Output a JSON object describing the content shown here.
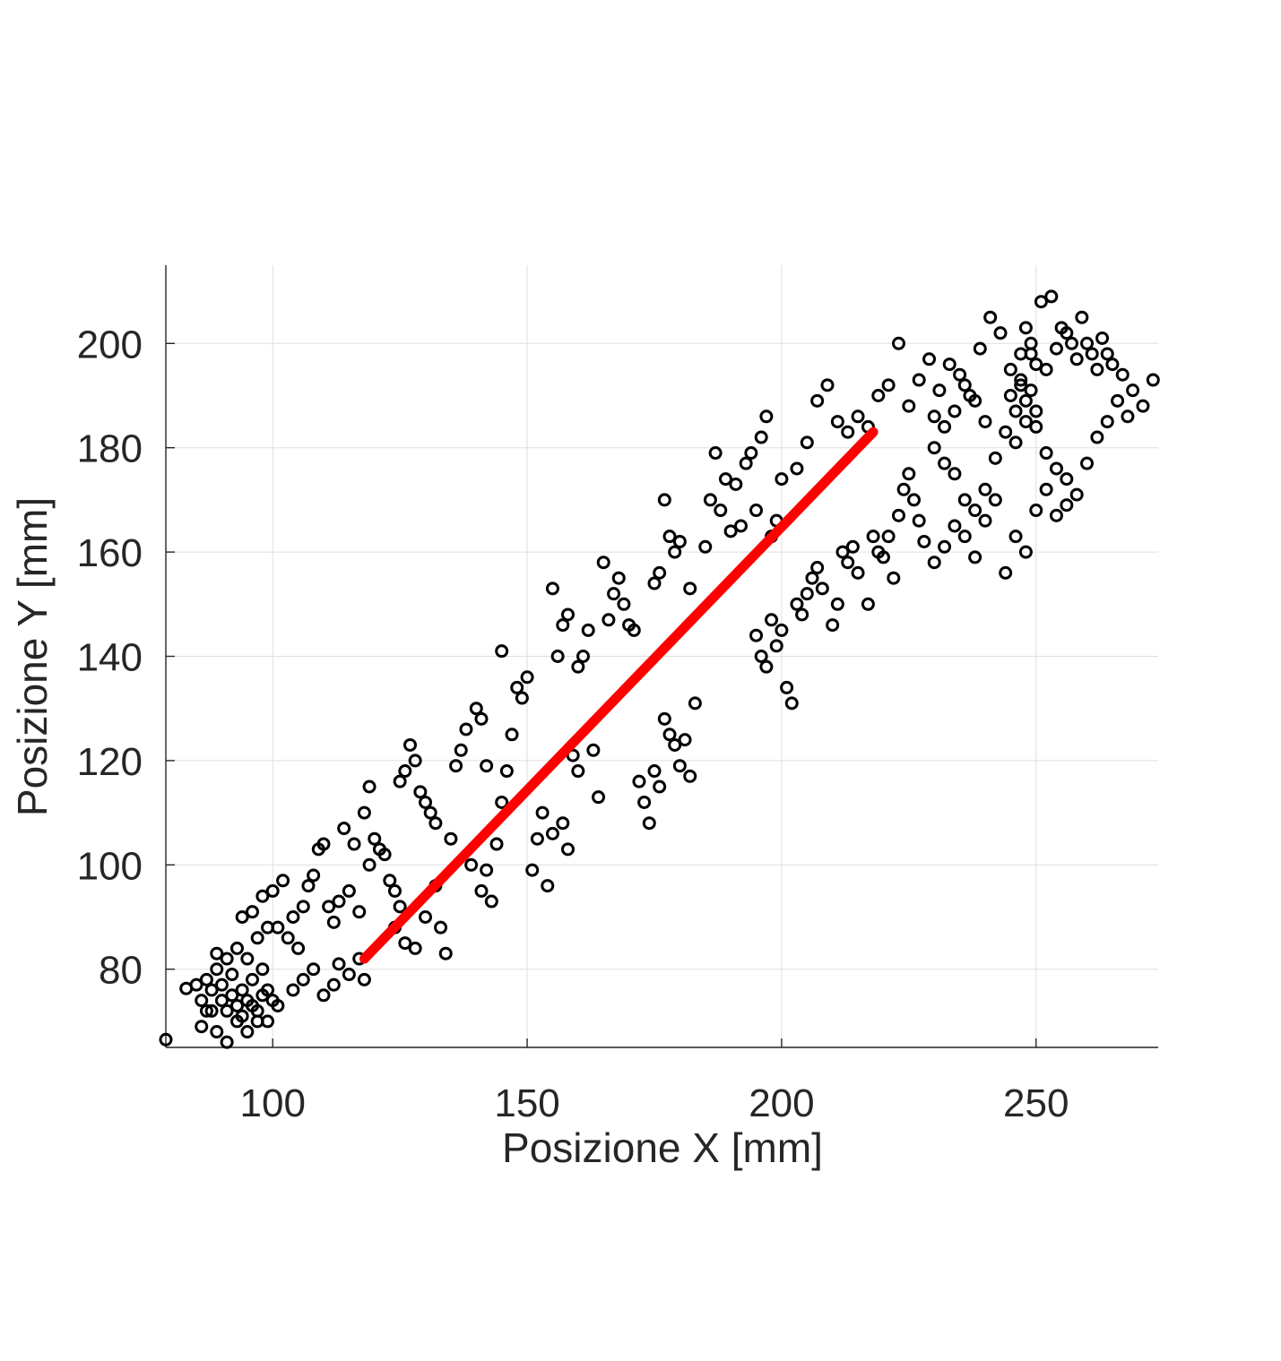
{
  "chart_data": {
    "type": "scatter",
    "title": "",
    "xlabel": "Posizione X [mm]",
    "ylabel": "Posizione Y [mm]",
    "xlim": [
      79,
      274
    ],
    "ylim": [
      65,
      215
    ],
    "x_ticks": [
      100,
      150,
      200,
      250
    ],
    "y_ticks": [
      80,
      100,
      120,
      140,
      160,
      180,
      200
    ],
    "grid": true,
    "legend": "none",
    "colors": {
      "points": "#000000",
      "fit_line": "#ff0000",
      "text": "#262626",
      "grid": "#dfdfdf"
    },
    "series": [
      {
        "marker": "circle",
        "color": "#000000",
        "points": [
          [
            79,
            66.5
          ],
          [
            83,
            76.3
          ],
          [
            85,
            77
          ],
          [
            87,
            78
          ],
          [
            88,
            76
          ],
          [
            89,
            80
          ],
          [
            90,
            74
          ],
          [
            91,
            72
          ],
          [
            92,
            75
          ],
          [
            93,
            73
          ],
          [
            94,
            71
          ],
          [
            95,
            74
          ],
          [
            96,
            73
          ],
          [
            97,
            72
          ],
          [
            98,
            75
          ],
          [
            88,
            72
          ],
          [
            86,
            74
          ],
          [
            90,
            77
          ],
          [
            92,
            79
          ],
          [
            94,
            76
          ],
          [
            96,
            78
          ],
          [
            98,
            80
          ],
          [
            99,
            76
          ],
          [
            100,
            74
          ],
          [
            101,
            73
          ],
          [
            89,
            68
          ],
          [
            91,
            66
          ],
          [
            93,
            70
          ],
          [
            95,
            68
          ],
          [
            97,
            70
          ],
          [
            99,
            70
          ],
          [
            86,
            69
          ],
          [
            87,
            72
          ],
          [
            89,
            83
          ],
          [
            91,
            82
          ],
          [
            93,
            84
          ],
          [
            95,
            82
          ],
          [
            97,
            86
          ],
          [
            99,
            88
          ],
          [
            94,
            90
          ],
          [
            96,
            91
          ],
          [
            98,
            94
          ],
          [
            100,
            95
          ],
          [
            102,
            97
          ],
          [
            101,
            88
          ],
          [
            103,
            86
          ],
          [
            104,
            90
          ],
          [
            105,
            84
          ],
          [
            106,
            92
          ],
          [
            107,
            96
          ],
          [
            108,
            98
          ],
          [
            109,
            103
          ],
          [
            110,
            104
          ],
          [
            111,
            92
          ],
          [
            112,
            89
          ],
          [
            113,
            93
          ],
          [
            115,
            95
          ],
          [
            114,
            107
          ],
          [
            116,
            104
          ],
          [
            118,
            110
          ],
          [
            119,
            115
          ],
          [
            104,
            76
          ],
          [
            106,
            78
          ],
          [
            108,
            80
          ],
          [
            110,
            75
          ],
          [
            112,
            77
          ],
          [
            113,
            81
          ],
          [
            115,
            79
          ],
          [
            117,
            82
          ],
          [
            118,
            78
          ],
          [
            117,
            91
          ],
          [
            119,
            100
          ],
          [
            120,
            105
          ],
          [
            121,
            103
          ],
          [
            122,
            102
          ],
          [
            123,
            97
          ],
          [
            124,
            95
          ],
          [
            125,
            92
          ],
          [
            125,
            116
          ],
          [
            126,
            118
          ],
          [
            127,
            123
          ],
          [
            128,
            120
          ],
          [
            129,
            114
          ],
          [
            130,
            112
          ],
          [
            131,
            110
          ],
          [
            132,
            108
          ],
          [
            124,
            88
          ],
          [
            126,
            85
          ],
          [
            128,
            84
          ],
          [
            130,
            90
          ],
          [
            132,
            96
          ],
          [
            133,
            88
          ],
          [
            134,
            83
          ],
          [
            135,
            105
          ],
          [
            136,
            119
          ],
          [
            137,
            122
          ],
          [
            138,
            126
          ],
          [
            140,
            130
          ],
          [
            141,
            128
          ],
          [
            142,
            119
          ],
          [
            139,
            100
          ],
          [
            141,
            95
          ],
          [
            142,
            99
          ],
          [
            143,
            93
          ],
          [
            144,
            104
          ],
          [
            145,
            112
          ],
          [
            146,
            118
          ],
          [
            147,
            125
          ],
          [
            148,
            134
          ],
          [
            149,
            132
          ],
          [
            145,
            141
          ],
          [
            150,
            136
          ],
          [
            151,
            99
          ],
          [
            152,
            105
          ],
          [
            153,
            110
          ],
          [
            154,
            96
          ],
          [
            155,
            106
          ],
          [
            157,
            108
          ],
          [
            158,
            103
          ],
          [
            159,
            121
          ],
          [
            160,
            118
          ],
          [
            155,
            153
          ],
          [
            156,
            140
          ],
          [
            157,
            146
          ],
          [
            158,
            148
          ],
          [
            160,
            138
          ],
          [
            161,
            140
          ],
          [
            162,
            145
          ],
          [
            163,
            122
          ],
          [
            164,
            113
          ],
          [
            165,
            158
          ],
          [
            166,
            147
          ],
          [
            167,
            152
          ],
          [
            168,
            155
          ],
          [
            169,
            150
          ],
          [
            170,
            146
          ],
          [
            171,
            145
          ],
          [
            172,
            116
          ],
          [
            173,
            112
          ],
          [
            174,
            108
          ],
          [
            175,
            118
          ],
          [
            176,
            115
          ],
          [
            177,
            128
          ],
          [
            178,
            125
          ],
          [
            179,
            123
          ],
          [
            180,
            119
          ],
          [
            181,
            124
          ],
          [
            182,
            117
          ],
          [
            183,
            131
          ],
          [
            175,
            154
          ],
          [
            176,
            156
          ],
          [
            177,
            170
          ],
          [
            178,
            163
          ],
          [
            179,
            160
          ],
          [
            180,
            162
          ],
          [
            182,
            153
          ],
          [
            185,
            161
          ],
          [
            186,
            170
          ],
          [
            187,
            179
          ],
          [
            188,
            168
          ],
          [
            189,
            174
          ],
          [
            190,
            164
          ],
          [
            191,
            173
          ],
          [
            192,
            165
          ],
          [
            193,
            177
          ],
          [
            194,
            179
          ],
          [
            195,
            168
          ],
          [
            196,
            182
          ],
          [
            197,
            186
          ],
          [
            198,
            163
          ],
          [
            199,
            166
          ],
          [
            200,
            174
          ],
          [
            195,
            144
          ],
          [
            196,
            140
          ],
          [
            197,
            138
          ],
          [
            198,
            147
          ],
          [
            199,
            142
          ],
          [
            200,
            145
          ],
          [
            201,
            134
          ],
          [
            202,
            131
          ],
          [
            203,
            150
          ],
          [
            204,
            148
          ],
          [
            205,
            152
          ],
          [
            206,
            155
          ],
          [
            207,
            157
          ],
          [
            208,
            153
          ],
          [
            210,
            146
          ],
          [
            211,
            150
          ],
          [
            212,
            160
          ],
          [
            213,
            158
          ],
          [
            214,
            161
          ],
          [
            215,
            156
          ],
          [
            217,
            150
          ],
          [
            218,
            163
          ],
          [
            219,
            160
          ],
          [
            220,
            159
          ],
          [
            221,
            163
          ],
          [
            222,
            155
          ],
          [
            223,
            167
          ],
          [
            224,
            172
          ],
          [
            225,
            175
          ],
          [
            226,
            170
          ],
          [
            227,
            166
          ],
          [
            228,
            162
          ],
          [
            203,
            176
          ],
          [
            205,
            181
          ],
          [
            207,
            189
          ],
          [
            209,
            192
          ],
          [
            211,
            185
          ],
          [
            213,
            183
          ],
          [
            215,
            186
          ],
          [
            217,
            184
          ],
          [
            219,
            190
          ],
          [
            221,
            192
          ],
          [
            223,
            200
          ],
          [
            225,
            188
          ],
          [
            227,
            193
          ],
          [
            229,
            197
          ],
          [
            231,
            191
          ],
          [
            233,
            196
          ],
          [
            235,
            194
          ],
          [
            237,
            190
          ],
          [
            239,
            199
          ],
          [
            241,
            205
          ],
          [
            243,
            202
          ],
          [
            245,
            195
          ],
          [
            247,
            192
          ],
          [
            249,
            198
          ],
          [
            251,
            208
          ],
          [
            253,
            209
          ],
          [
            255,
            203
          ],
          [
            257,
            200
          ],
          [
            259,
            205
          ],
          [
            261,
            198
          ],
          [
            263,
            201
          ],
          [
            265,
            196
          ],
          [
            267,
            194
          ],
          [
            269,
            191
          ],
          [
            271,
            188
          ],
          [
            273,
            193
          ],
          [
            230,
            180
          ],
          [
            232,
            177
          ],
          [
            234,
            175
          ],
          [
            236,
            170
          ],
          [
            238,
            168
          ],
          [
            240,
            172
          ],
          [
            242,
            178
          ],
          [
            244,
            183
          ],
          [
            246,
            181
          ],
          [
            248,
            185
          ],
          [
            250,
            187
          ],
          [
            252,
            179
          ],
          [
            254,
            176
          ],
          [
            256,
            174
          ],
          [
            258,
            171
          ],
          [
            260,
            177
          ],
          [
            262,
            182
          ],
          [
            264,
            185
          ],
          [
            266,
            189
          ],
          [
            268,
            186
          ],
          [
            230,
            158
          ],
          [
            232,
            161
          ],
          [
            234,
            165
          ],
          [
            236,
            163
          ],
          [
            238,
            159
          ],
          [
            240,
            166
          ],
          [
            242,
            170
          ],
          [
            244,
            156
          ],
          [
            246,
            163
          ],
          [
            248,
            160
          ],
          [
            250,
            168
          ],
          [
            252,
            172
          ],
          [
            254,
            167
          ],
          [
            256,
            169
          ],
          [
            247,
            198
          ],
          [
            248,
            203
          ],
          [
            249,
            200
          ],
          [
            250,
            196
          ],
          [
            252,
            195
          ],
          [
            254,
            199
          ],
          [
            256,
            202
          ],
          [
            258,
            197
          ],
          [
            260,
            200
          ],
          [
            262,
            195
          ],
          [
            264,
            198
          ],
          [
            245,
            190
          ],
          [
            246,
            187
          ],
          [
            247,
            193
          ],
          [
            248,
            189
          ],
          [
            249,
            191
          ],
          [
            250,
            184
          ],
          [
            240,
            185
          ],
          [
            238,
            189
          ],
          [
            236,
            192
          ],
          [
            234,
            187
          ],
          [
            232,
            184
          ],
          [
            230,
            186
          ]
        ]
      },
      {
        "type": "line",
        "color": "#ff0000",
        "points": [
          [
            118,
            82
          ],
          [
            218,
            183
          ]
        ]
      }
    ]
  }
}
